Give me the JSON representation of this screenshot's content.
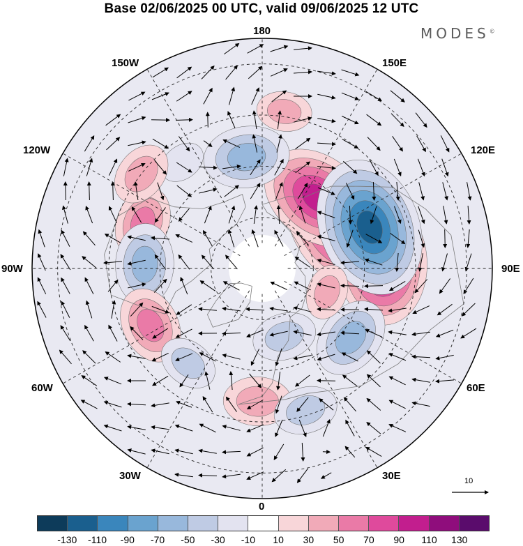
{
  "title": "Base 02/06/2025 00 UTC, valid 09/06/2025 12 UTC",
  "brand": "MODES",
  "brand_mark": "©",
  "longitude_labels": {
    "top": "180",
    "bottom": "0",
    "left": "90W",
    "right": "90E",
    "upper_left_1": "150W",
    "upper_left_2": "120W",
    "lower_left_1": "60W",
    "lower_left_2": "30W",
    "upper_right_1": "150E",
    "upper_right_2": "120E",
    "lower_right_1": "60E",
    "lower_right_2": "30E"
  },
  "vector_scale_label": "10",
  "colorbar": {
    "colors": [
      "#0d3b5a",
      "#1a5f8e",
      "#3a86bc",
      "#6aa3cf",
      "#98b8dc",
      "#bfcbe4",
      "#e3e3f0",
      "#ffffff",
      "#f8d6d9",
      "#f1aab8",
      "#ea7aa7",
      "#df4a9c",
      "#c21e8e",
      "#8f0d7c",
      "#5a0c6c"
    ],
    "tick_labels": [
      "-130",
      "-110",
      "-90",
      "-70",
      "-50",
      "-30",
      "-10",
      "10",
      "30",
      "50",
      "70",
      "90",
      "110",
      "130"
    ]
  },
  "anomaly_centers": [
    {
      "lon": 120,
      "lat": 55,
      "value": 120
    },
    {
      "lon": 142,
      "lat": 55,
      "value": 100
    },
    {
      "lon": 93,
      "lat": 43,
      "value": 110
    },
    {
      "lon": 111,
      "lat": 45,
      "value": -125
    },
    {
      "lon": -172,
      "lat": 46,
      "value": -65
    },
    {
      "lon": -111,
      "lat": 40,
      "value": 50
    },
    {
      "lon": -92,
      "lat": 44,
      "value": -60
    },
    {
      "lon": -63,
      "lat": 41,
      "value": 55
    },
    {
      "lon": -38,
      "lat": 43,
      "value": -35
    },
    {
      "lon": -2,
      "lat": 38,
      "value": 45
    },
    {
      "lon": 17,
      "lat": 32,
      "value": -40
    },
    {
      "lon": 52,
      "lat": 46,
      "value": -60
    },
    {
      "lon": 18,
      "lat": 62,
      "value": -40
    },
    {
      "lon": 70,
      "lat": 63,
      "value": 30
    },
    {
      "lon": 172,
      "lat": 28,
      "value": 30
    },
    {
      "lon": -143,
      "lat": 38,
      "value": -20
    },
    {
      "lon": -128,
      "lat": 30,
      "value": 40
    }
  ]
}
